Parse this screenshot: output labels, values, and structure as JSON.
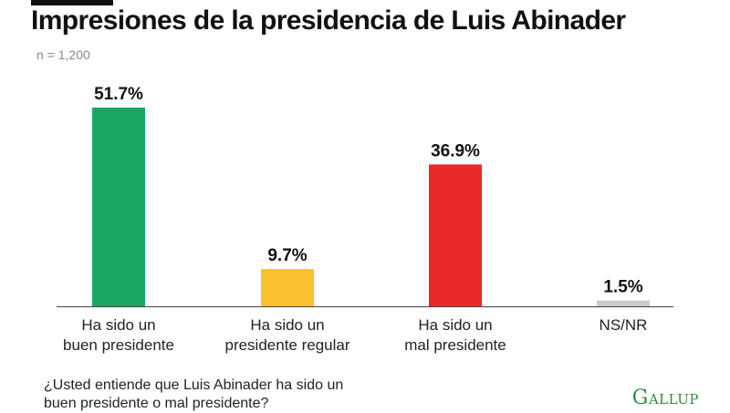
{
  "header": {
    "title": "Impresiones de la presidencia de Luis Abinader",
    "sample_size": "n = 1,200"
  },
  "footer": {
    "question": "¿Usted entiende que Luis Abinader ha sido un buen presidente o mal presidente?",
    "brand": "Gallup"
  },
  "chart_data": {
    "type": "bar",
    "title": "Impresiones de la presidencia de Luis Abinader",
    "subtitle": "n = 1,200",
    "categories": [
      [
        "Ha sido un",
        "buen presidente"
      ],
      [
        "Ha sido un",
        "presidente regular"
      ],
      [
        "Ha sido un",
        "mal presidente"
      ],
      [
        "NS/NR"
      ]
    ],
    "values": [
      51.7,
      9.7,
      36.9,
      1.5
    ],
    "value_labels": [
      "51.7%",
      "9.7%",
      "36.9%",
      "1.5%"
    ],
    "colors": [
      "#1aa665",
      "#fbc02d",
      "#e8282b",
      "#cccccc"
    ],
    "ylim": [
      0,
      51.7
    ],
    "grid": false,
    "legend": "none"
  }
}
